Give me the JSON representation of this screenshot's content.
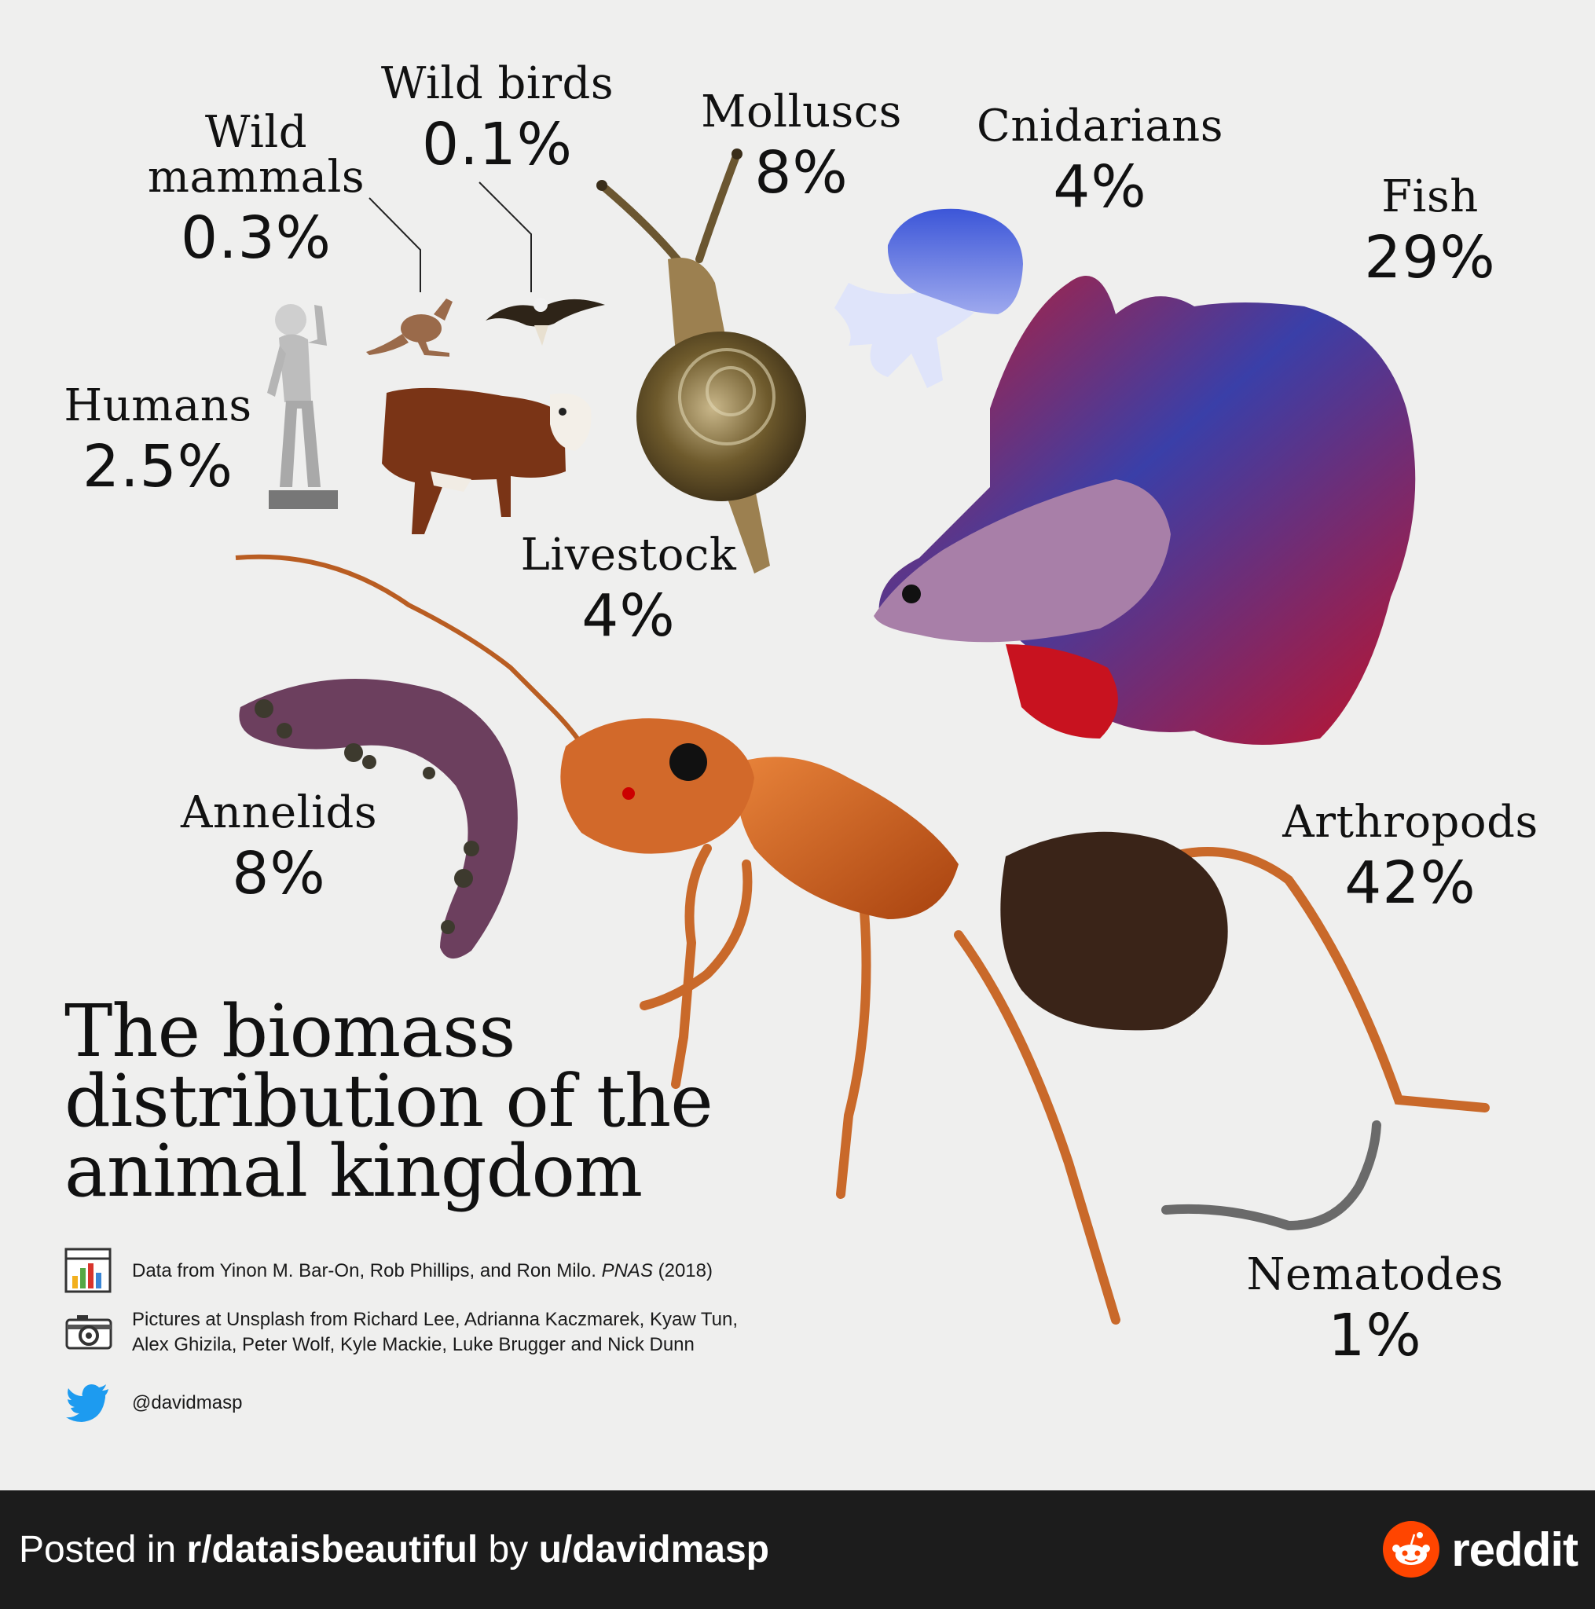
{
  "chart_data": {
    "type": "pictogram",
    "title": "The biomass distribution of the animal kingdom",
    "unit": "%",
    "categories": [
      "Wild mammals",
      "Wild birds",
      "Molluscs",
      "Cnidarians",
      "Fish",
      "Humans",
      "Livestock",
      "Annelids",
      "Arthropods",
      "Nematodes"
    ],
    "values": [
      0.3,
      0.1,
      8,
      4,
      29,
      2.5,
      4,
      8,
      42,
      1
    ],
    "labels": [
      {
        "name_lines": [
          "Wild",
          "mammals"
        ],
        "pct": "0.3%"
      },
      {
        "name_lines": [
          "Wild birds"
        ],
        "pct": "0.1%"
      },
      {
        "name_lines": [
          "Molluscs"
        ],
        "pct": "8%"
      },
      {
        "name_lines": [
          "Cnidarians"
        ],
        "pct": "4%"
      },
      {
        "name_lines": [
          "Fish"
        ],
        "pct": "29%"
      },
      {
        "name_lines": [
          "Humans"
        ],
        "pct": "2.5%"
      },
      {
        "name_lines": [
          "Livestock"
        ],
        "pct": "4%"
      },
      {
        "name_lines": [
          "Annelids"
        ],
        "pct": "8%"
      },
      {
        "name_lines": [
          "Arthropods"
        ],
        "pct": "42%"
      },
      {
        "name_lines": [
          "Nematodes"
        ],
        "pct": "1%"
      }
    ]
  },
  "title_lines": [
    "The biomass",
    "distribution of the",
    "animal kingdom"
  ],
  "credits": {
    "data": {
      "pre": "Data from Yinon M. Bar-On, Rob Phillips, and Ron Milo. ",
      "journal": "PNAS",
      "post": " (2018)"
    },
    "pictures": [
      "Pictures at Unsplash from Richard Lee, Adrianna Kaczmarek, Kyaw Tun,",
      "Alex Ghizila, Peter Wolf, Kyle Mackie, Luke Brugger and Nick Dunn"
    ],
    "twitter": "@davidmasp"
  },
  "footer": {
    "posted_in": "Posted in ",
    "subreddit": "r/dataisbeautiful",
    "by": " by ",
    "user": "u/davidmasp",
    "brand": "reddit"
  },
  "colors": {
    "background": "#efefee",
    "footer": "#1c1c1c",
    "reddit_orange": "#ff4500",
    "twitter_blue": "#1d9bf0"
  }
}
